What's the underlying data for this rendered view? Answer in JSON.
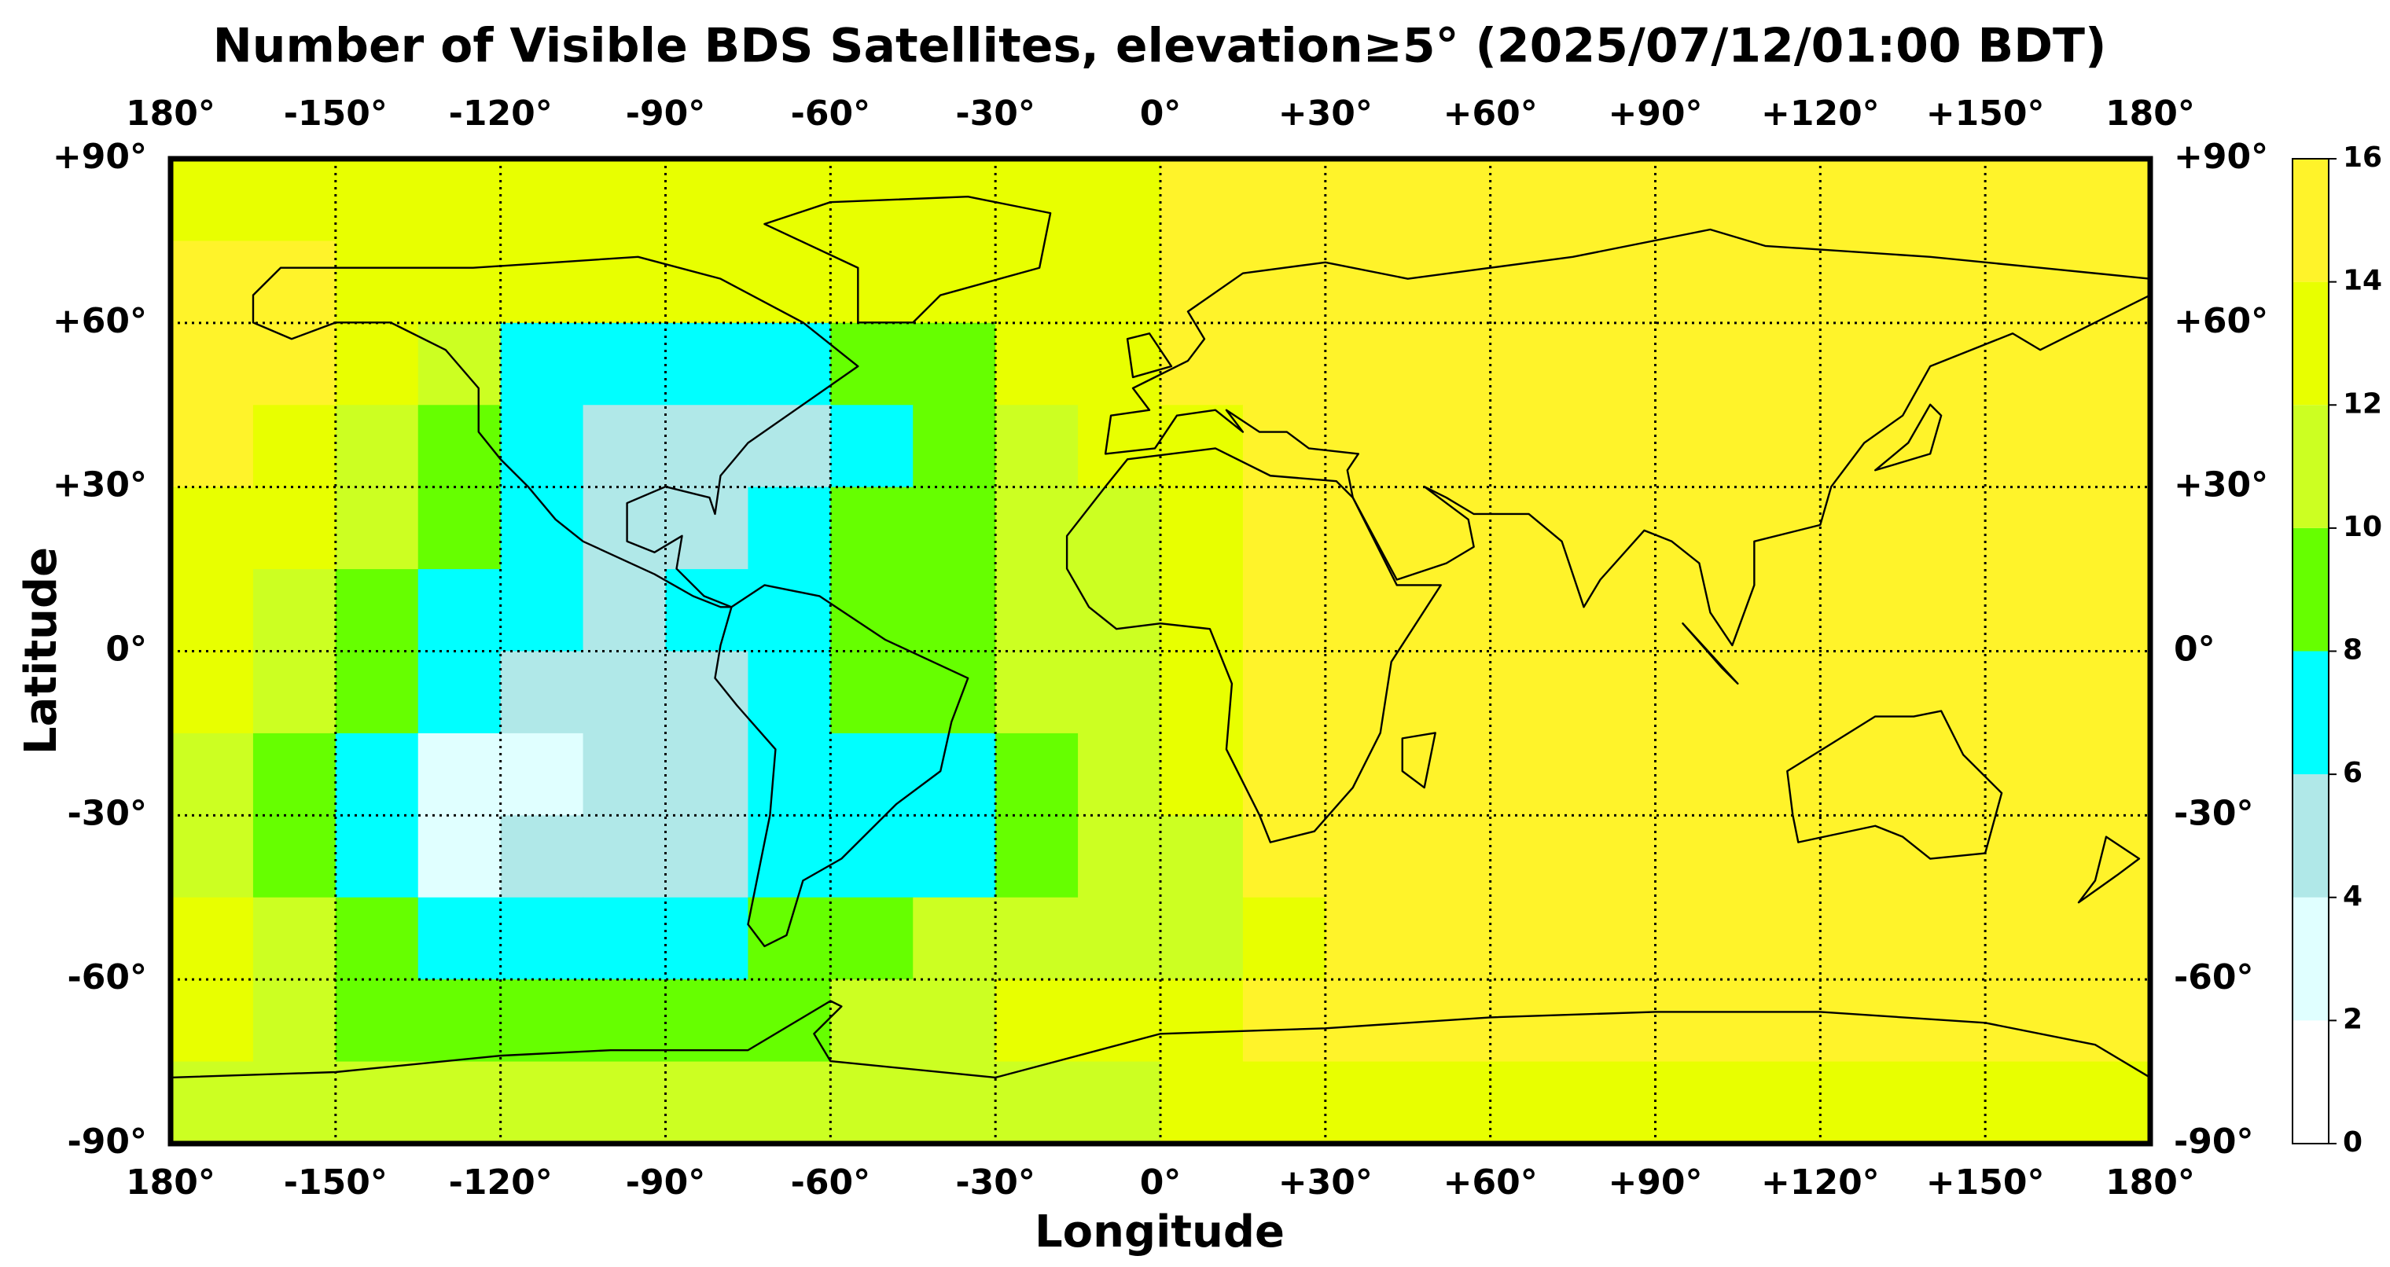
{
  "chart_data": {
    "type": "heatmap",
    "title": "Number of Visible BDS Satellites, elevation≥5° (2025/07/12/01:00 BDT)",
    "xlabel": "Longitude",
    "ylabel": "Latitude",
    "xlim": [
      -180,
      180
    ],
    "ylim": [
      -90,
      90
    ],
    "xticks": [
      {
        "value": -180,
        "label": "180°"
      },
      {
        "value": -150,
        "label": "-150°"
      },
      {
        "value": -120,
        "label": "-120°"
      },
      {
        "value": -90,
        "label": "-90°"
      },
      {
        "value": -60,
        "label": "-60°"
      },
      {
        "value": -30,
        "label": "-30°"
      },
      {
        "value": 0,
        "label": "0°"
      },
      {
        "value": 30,
        "label": "+30°"
      },
      {
        "value": 60,
        "label": "+60°"
      },
      {
        "value": 90,
        "label": "+90°"
      },
      {
        "value": 120,
        "label": "+120°"
      },
      {
        "value": 150,
        "label": "+150°"
      },
      {
        "value": 180,
        "label": "180°"
      }
    ],
    "yticks": [
      {
        "value": 90,
        "label": "+90°"
      },
      {
        "value": 60,
        "label": "+60°"
      },
      {
        "value": 30,
        "label": "+30°"
      },
      {
        "value": 0,
        "label": "0°"
      },
      {
        "value": -30,
        "label": "-30°"
      },
      {
        "value": -60,
        "label": "-60°"
      },
      {
        "value": -90,
        "label": "-90°"
      }
    ],
    "grid": true,
    "levels": [
      0,
      2,
      4,
      6,
      8,
      10,
      12,
      14,
      16
    ],
    "colors": [
      "#ffffff",
      "#e0ffff",
      "#b0e8e8",
      "#00ffff",
      "#66ff00",
      "#ccff22",
      "#e8ff00",
      "#fff32a"
    ],
    "z": [
      [
        13,
        13,
        13,
        13,
        13,
        13,
        13,
        13,
        13,
        13,
        13,
        13,
        15,
        15,
        15,
        15,
        15,
        15,
        15,
        15,
        15,
        15,
        15,
        15
      ],
      [
        15,
        15,
        13,
        13,
        13,
        13,
        13,
        13,
        13,
        13,
        13,
        13,
        15,
        15,
        15,
        15,
        15,
        15,
        15,
        15,
        15,
        15,
        15,
        15
      ],
      [
        15,
        15,
        13,
        11,
        7,
        7,
        7,
        7,
        9,
        9,
        13,
        13,
        15,
        15,
        15,
        15,
        15,
        15,
        15,
        15,
        15,
        15,
        15,
        15
      ],
      [
        15,
        13,
        11,
        9,
        7,
        5,
        5,
        5,
        7,
        9,
        11,
        13,
        13,
        15,
        15,
        15,
        15,
        15,
        15,
        15,
        15,
        15,
        15,
        15
      ],
      [
        13,
        13,
        11,
        9,
        7,
        5,
        5,
        7,
        9,
        9,
        11,
        11,
        13,
        15,
        15,
        15,
        15,
        15,
        15,
        15,
        15,
        15,
        15,
        15
      ],
      [
        13,
        11,
        9,
        7,
        7,
        5,
        7,
        7,
        9,
        9,
        11,
        11,
        13,
        15,
        15,
        15,
        15,
        15,
        15,
        15,
        15,
        15,
        15,
        15
      ],
      [
        13,
        11,
        9,
        7,
        5,
        5,
        5,
        7,
        9,
        9,
        11,
        11,
        13,
        15,
        15,
        15,
        15,
        15,
        15,
        15,
        15,
        15,
        15,
        15
      ],
      [
        11,
        9,
        7,
        3,
        3,
        5,
        5,
        7,
        7,
        7,
        9,
        11,
        13,
        15,
        15,
        15,
        15,
        15,
        15,
        15,
        15,
        15,
        15,
        15
      ],
      [
        11,
        9,
        7,
        3,
        5,
        5,
        5,
        7,
        7,
        7,
        9,
        11,
        11,
        15,
        15,
        15,
        15,
        15,
        15,
        15,
        15,
        15,
        15,
        15
      ],
      [
        13,
        11,
        9,
        7,
        7,
        7,
        7,
        9,
        9,
        11,
        11,
        11,
        11,
        13,
        15,
        15,
        15,
        15,
        15,
        15,
        15,
        15,
        15,
        15
      ],
      [
        13,
        11,
        9,
        9,
        9,
        9,
        9,
        9,
        11,
        11,
        13,
        13,
        13,
        15,
        15,
        15,
        15,
        15,
        15,
        15,
        15,
        15,
        15,
        15
      ],
      [
        11,
        11,
        11,
        11,
        11,
        11,
        11,
        11,
        11,
        11,
        11,
        11,
        13,
        13,
        13,
        13,
        13,
        13,
        13,
        13,
        13,
        13,
        13,
        13
      ]
    ]
  }
}
